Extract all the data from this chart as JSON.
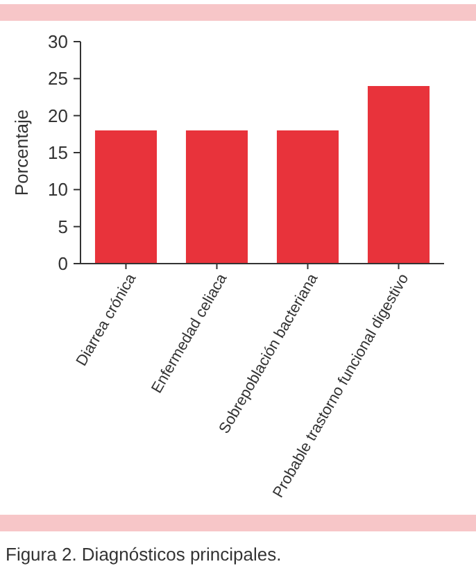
{
  "chart_data": {
    "type": "bar",
    "ylabel": "Porcentaje",
    "annotations": [
      "Figura 2. Diagnósticos principales."
    ],
    "categories": [
      "Diarrea crónica",
      "Enfermedad celiaca",
      "Sobrepoblación bacteriana",
      "Probable trastorno funcional digestivo"
    ],
    "values": [
      18,
      18,
      18,
      24
    ],
    "color": "#e8333b",
    "ylim": [
      0,
      30
    ],
    "yticks": [
      0,
      5,
      10,
      15,
      20,
      25,
      30
    ],
    "grid": false
  }
}
